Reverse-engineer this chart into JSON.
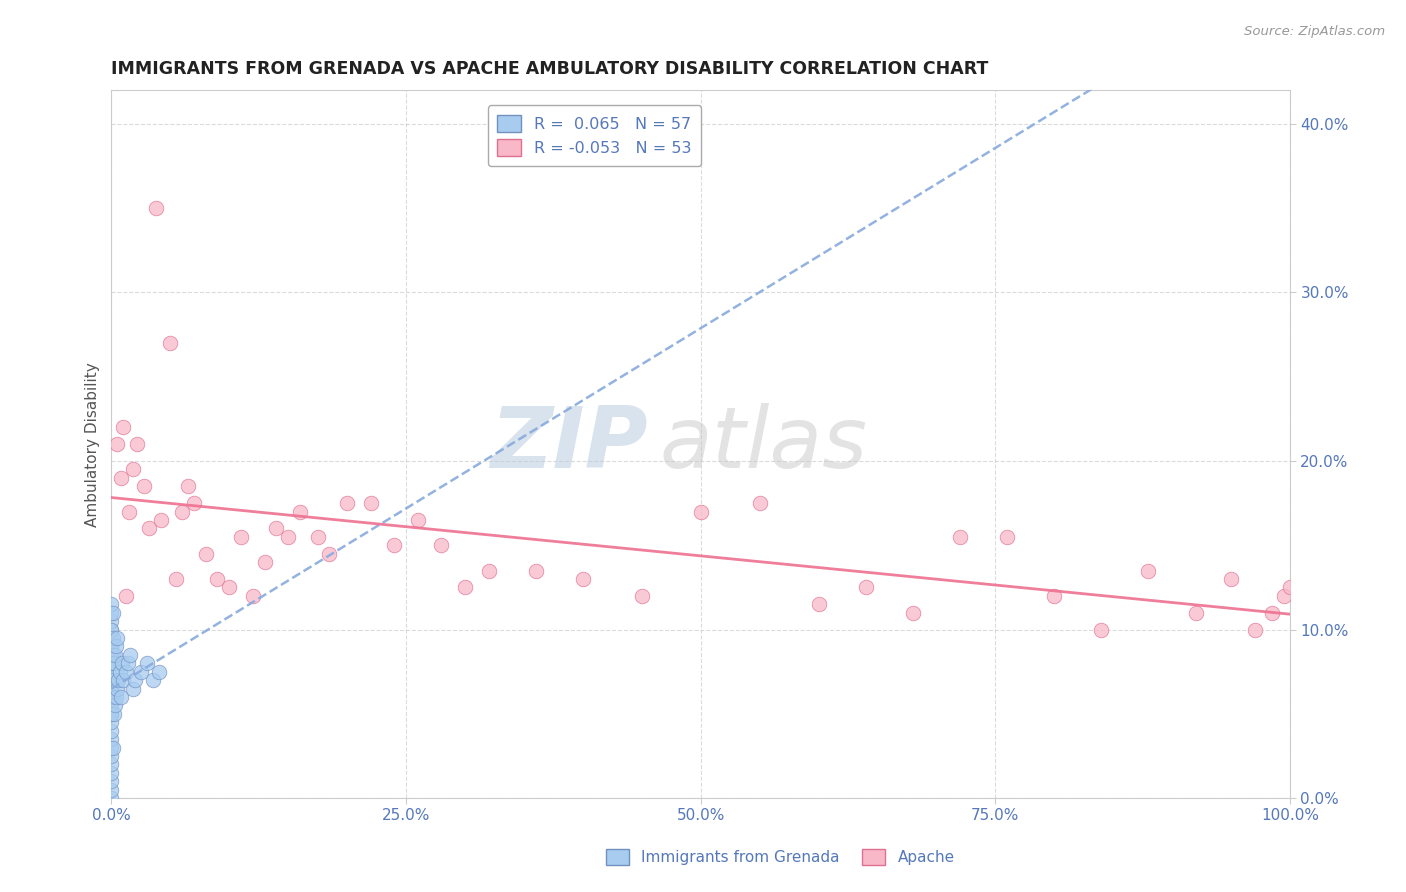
{
  "title": "IMMIGRANTS FROM GRENADA VS APACHE AMBULATORY DISABILITY CORRELATION CHART",
  "source_text": "Source: ZipAtlas.com",
  "ylabel": "Ambulatory Disability",
  "legend_label_1": "Immigrants from Grenada",
  "legend_label_2": "Apache",
  "r1_text": "0.065",
  "n1_text": "57",
  "r2_text": "-0.053",
  "n2_text": "53",
  "color_blue_fill": "#A8CCF0",
  "color_pink_fill": "#F8B8C8",
  "color_blue_edge": "#7090C0",
  "color_pink_edge": "#E07090",
  "color_blue_line": "#88AADD",
  "color_pink_line": "#EE7090",
  "color_text": "#5578BB",
  "color_title": "#222222",
  "color_source": "#999999",
  "color_grid": "#cccccc",
  "xlim": [
    0.0,
    1.0
  ],
  "ylim": [
    0.0,
    0.42
  ],
  "x_ticks": [
    0.0,
    0.25,
    0.5,
    0.75,
    1.0
  ],
  "y_ticks": [
    0.0,
    0.1,
    0.2,
    0.3,
    0.4
  ],
  "blue_x": [
    0.0,
    0.0,
    0.0,
    0.0,
    0.0,
    0.0,
    0.0,
    0.0,
    0.0,
    0.0,
    0.0,
    0.0,
    0.0,
    0.0,
    0.0,
    0.0,
    0.0,
    0.0,
    0.0,
    0.0,
    0.0,
    0.0,
    0.0,
    0.0,
    0.0,
    0.0,
    0.0,
    0.0,
    0.0,
    0.0,
    0.001,
    0.001,
    0.001,
    0.001,
    0.001,
    0.002,
    0.002,
    0.003,
    0.003,
    0.004,
    0.004,
    0.005,
    0.005,
    0.006,
    0.007,
    0.008,
    0.009,
    0.01,
    0.012,
    0.014,
    0.016,
    0.018,
    0.02,
    0.025,
    0.03,
    0.035,
    0.04
  ],
  "blue_y": [
    0.0,
    0.005,
    0.01,
    0.015,
    0.02,
    0.025,
    0.03,
    0.035,
    0.04,
    0.045,
    0.05,
    0.055,
    0.06,
    0.065,
    0.07,
    0.075,
    0.08,
    0.085,
    0.09,
    0.095,
    0.1,
    0.105,
    0.11,
    0.115,
    0.05,
    0.07,
    0.09,
    0.06,
    0.08,
    0.1,
    0.03,
    0.06,
    0.085,
    0.095,
    0.11,
    0.05,
    0.08,
    0.055,
    0.085,
    0.06,
    0.09,
    0.065,
    0.095,
    0.07,
    0.075,
    0.06,
    0.08,
    0.07,
    0.075,
    0.08,
    0.085,
    0.065,
    0.07,
    0.075,
    0.08,
    0.07,
    0.075
  ],
  "pink_x": [
    0.01,
    0.015,
    0.018,
    0.022,
    0.028,
    0.032,
    0.038,
    0.042,
    0.05,
    0.055,
    0.06,
    0.065,
    0.07,
    0.08,
    0.09,
    0.1,
    0.11,
    0.12,
    0.13,
    0.14,
    0.15,
    0.16,
    0.175,
    0.185,
    0.2,
    0.22,
    0.24,
    0.26,
    0.3,
    0.32,
    0.36,
    0.4,
    0.45,
    0.5,
    0.55,
    0.6,
    0.64,
    0.68,
    0.72,
    0.76,
    0.8,
    0.84,
    0.88,
    0.92,
    0.95,
    0.97,
    0.985,
    0.995,
    1.0,
    0.005,
    0.008,
    0.012,
    0.28
  ],
  "pink_y": [
    0.22,
    0.17,
    0.195,
    0.21,
    0.185,
    0.16,
    0.35,
    0.165,
    0.27,
    0.13,
    0.17,
    0.185,
    0.175,
    0.145,
    0.13,
    0.125,
    0.155,
    0.12,
    0.14,
    0.16,
    0.155,
    0.17,
    0.155,
    0.145,
    0.175,
    0.175,
    0.15,
    0.165,
    0.125,
    0.135,
    0.135,
    0.13,
    0.12,
    0.17,
    0.175,
    0.115,
    0.125,
    0.11,
    0.155,
    0.155,
    0.12,
    0.1,
    0.135,
    0.11,
    0.13,
    0.1,
    0.11,
    0.12,
    0.125,
    0.21,
    0.19,
    0.12,
    0.15
  ],
  "watermark_zip": "ZIP",
  "watermark_atlas": "atlas",
  "background_color": "#ffffff"
}
